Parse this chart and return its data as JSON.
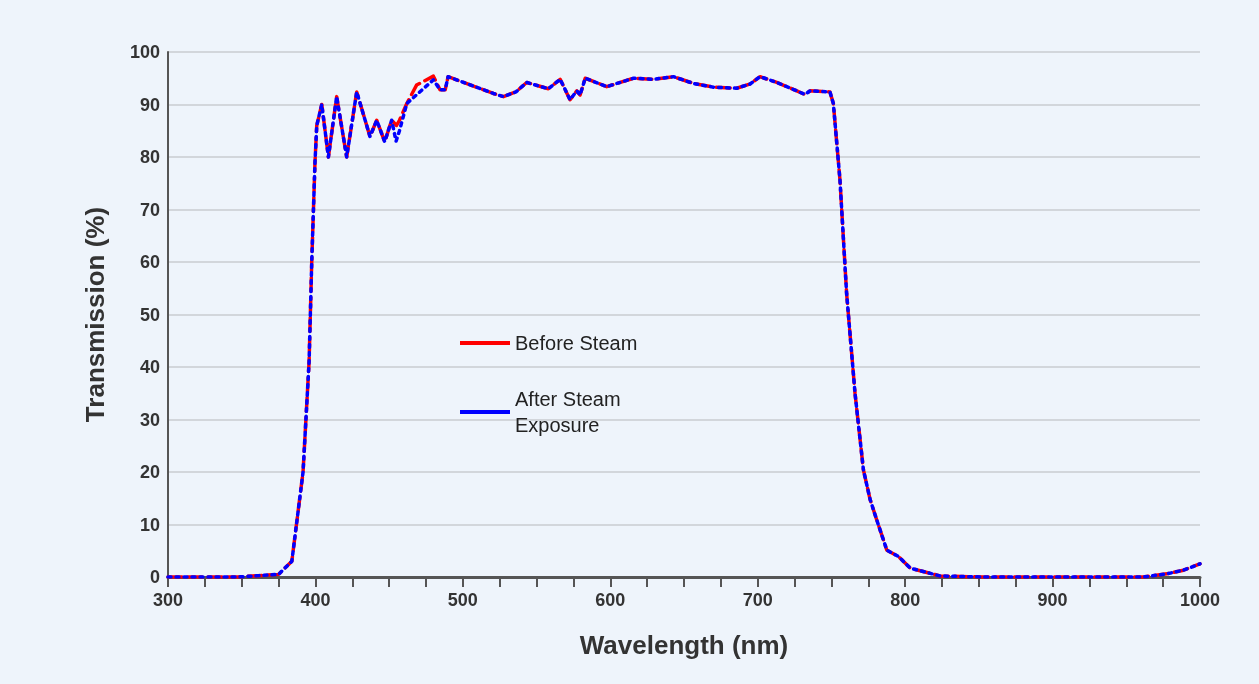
{
  "chart_data": {
    "type": "line",
    "xlabel": "Wavelength (nm)",
    "ylabel": "Transmission (%)",
    "xlim": [
      300,
      1000
    ],
    "xticks": [
      300,
      {
        "value": 325,
        "label": null
      },
      {
        "value": 350,
        "label": null
      },
      {
        "value": 375,
        "label": null
      },
      400,
      {
        "value": 425,
        "label": null
      },
      {
        "value": 450,
        "label": null
      },
      {
        "value": 475,
        "label": null
      },
      500,
      {
        "value": 525,
        "label": null
      },
      {
        "value": 550,
        "label": null
      },
      {
        "value": 575,
        "label": null
      },
      600,
      {
        "value": 625,
        "label": null
      },
      {
        "value": 650,
        "label": null
      },
      {
        "value": 675,
        "label": null
      },
      700,
      {
        "value": 725,
        "label": null
      },
      {
        "value": 750,
        "label": null
      },
      {
        "value": 775,
        "label": null
      },
      800,
      {
        "value": 825,
        "label": null
      },
      {
        "value": 850,
        "label": null
      },
      {
        "value": 875,
        "label": null
      },
      900,
      {
        "value": 925,
        "label": null
      },
      {
        "value": 950,
        "label": null
      },
      {
        "value": 975,
        "label": null
      },
      1000
    ],
    "ylim": [
      0,
      100
    ],
    "yticks": [
      0,
      10,
      20,
      30,
      40,
      50,
      60,
      70,
      80,
      90,
      100
    ],
    "grid": "y",
    "legend": "center",
    "marker": "none",
    "series": [
      {
        "name": "Before Steam",
        "color": "#ff0000",
        "line_style": "dashed",
        "x": [
          300,
          347,
          375,
          384,
          391.6,
          395.7,
          397.5,
          399.7,
          400.9,
          404.3,
          408.8,
          414.4,
          421.2,
          428,
          437,
          441.6,
          447,
          451.7,
          455,
          457,
          462,
          468.6,
          480,
          484.5,
          488,
          490,
          520.7,
          527.5,
          536,
          543.3,
          558,
          566,
          572.7,
          577.3,
          579.5,
          583,
          597.6,
          615.7,
          629,
          642.9,
          656.5,
          670,
          685.8,
          694.8,
          701.6,
          712.9,
          726.5,
          732,
          735.5,
          749,
          751.3,
          755.8,
          760.3,
          766,
          771.7,
          776.3,
          780.7,
          787.6,
          795.5,
          803.4,
          823.7,
          853,
          961.5,
          977.5,
          988.8,
          1000
        ],
        "values": [
          0,
          0,
          0.5,
          3,
          20,
          41,
          60,
          79,
          86,
          90,
          80,
          91.5,
          80,
          92.4,
          83.9,
          87,
          82.9,
          87,
          86,
          87,
          90.2,
          93.7,
          95.4,
          92.8,
          92.8,
          95.3,
          92.1,
          91.5,
          92.4,
          94.2,
          93,
          94.8,
          90.9,
          92.6,
          91.8,
          95,
          93.4,
          95,
          94.8,
          95.3,
          94,
          93.3,
          93.1,
          93.9,
          95.3,
          94.2,
          92.6,
          91.9,
          92.6,
          92.4,
          90.2,
          75.6,
          54,
          35,
          20.4,
          14.7,
          10.9,
          5.1,
          3.9,
          1.7,
          0.2,
          0,
          0,
          0.6,
          1.3,
          2.5
        ]
      },
      {
        "name": "After Steam Exposure",
        "color": "#0000ff",
        "line_style": "dotted",
        "x": [
          300,
          347,
          375,
          384,
          391.6,
          395.7,
          397.5,
          399.7,
          400.9,
          404.3,
          408.8,
          414.4,
          421.2,
          428,
          437,
          441.6,
          447,
          451.7,
          454.7,
          457,
          462,
          480,
          484.5,
          488,
          490,
          520.7,
          527.5,
          536,
          543.3,
          558,
          566,
          572.7,
          577.3,
          579.5,
          583,
          597.6,
          615.7,
          629,
          642.9,
          656.5,
          670,
          685.8,
          694.8,
          701.6,
          712.9,
          726.5,
          732,
          735.5,
          749,
          751.3,
          755.8,
          760.3,
          766,
          771.7,
          776.3,
          780.7,
          787.6,
          795.5,
          803.4,
          823.7,
          853,
          961.5,
          977.5,
          988.8,
          1000
        ],
        "values": [
          0,
          0,
          0.5,
          3,
          20,
          41,
          60,
          79,
          86,
          90,
          80,
          91.5,
          80,
          92.4,
          83.9,
          87,
          82.9,
          87,
          83,
          85,
          90.2,
          94.7,
          92.8,
          92.8,
          95.3,
          92.1,
          91.5,
          92.4,
          94.2,
          93,
          94.8,
          90.9,
          92.6,
          91.8,
          95,
          93.4,
          95,
          94.8,
          95.3,
          94,
          93.3,
          93.1,
          93.9,
          95.3,
          94.2,
          92.6,
          91.9,
          92.6,
          92.4,
          90.2,
          75.6,
          54,
          35,
          20.4,
          14.7,
          10.9,
          5.1,
          3.9,
          1.7,
          0.2,
          0,
          0,
          0.6,
          1.3,
          2.5
        ]
      }
    ]
  }
}
